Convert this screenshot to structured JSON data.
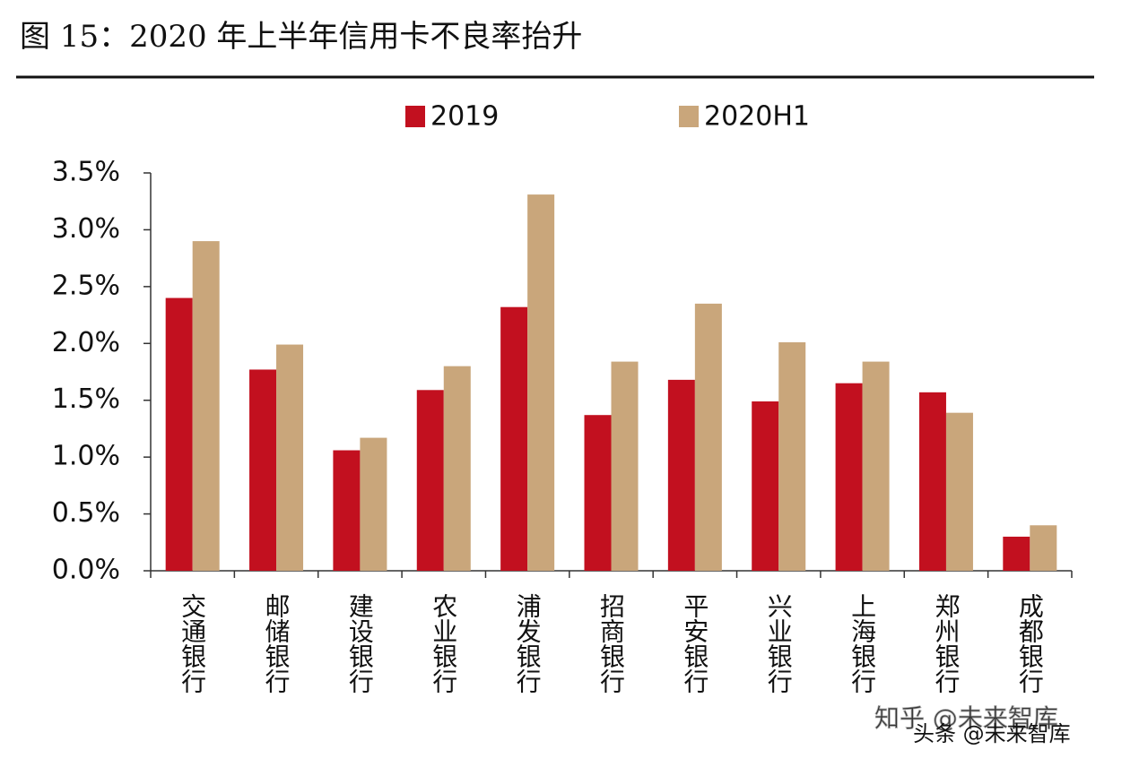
{
  "chart_data": {
    "type": "bar",
    "title": "图 15：2020 年上半年信用卡不良率抬升",
    "categories": [
      "交通银行",
      "邮储银行",
      "建设银行",
      "农业银行",
      "浦发银行",
      "招商银行",
      "平安银行",
      "兴业银行",
      "上海银行",
      "郑州银行",
      "成都银行"
    ],
    "series": [
      {
        "name": "2019",
        "color": "#c2101f",
        "values": [
          2.4,
          1.77,
          1.06,
          1.59,
          2.32,
          1.37,
          1.68,
          1.49,
          1.65,
          1.57,
          0.3
        ]
      },
      {
        "name": "2020H1",
        "color": "#c9a67b",
        "values": [
          2.9,
          1.99,
          1.17,
          1.8,
          3.31,
          1.84,
          2.35,
          2.01,
          1.84,
          1.39,
          0.4
        ]
      }
    ],
    "ylim": [
      0,
      3.5
    ],
    "yticks": [
      {
        "value": 0,
        "label": "0.0%"
      },
      {
        "value": 0.5,
        "label": "0.5%"
      },
      {
        "value": 1,
        "label": "1.0%"
      },
      {
        "value": 1.5,
        "label": "1.5%"
      },
      {
        "value": 2,
        "label": "2.0%"
      },
      {
        "value": 2.5,
        "label": "2.5%"
      },
      {
        "value": 3,
        "label": "3.0%"
      },
      {
        "value": 3.5,
        "label": "3.5%"
      }
    ],
    "grid": false,
    "legend": "top",
    "watermarks": [
      "知乎 @未来智库",
      "头条 @未来智库"
    ]
  }
}
